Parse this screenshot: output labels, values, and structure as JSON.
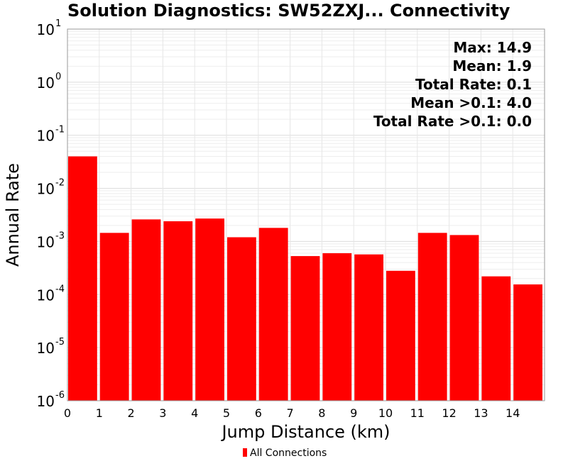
{
  "chart_data": {
    "type": "bar",
    "title": "Solution Diagnostics: SW52ZXJ... Connectivity",
    "xlabel": "Jump Distance (km)",
    "ylabel": "Annual Rate",
    "yscale": "log",
    "ylim": [
      1e-06,
      10
    ],
    "xlim": [
      0,
      15
    ],
    "x_ticks": [
      0,
      1,
      2,
      3,
      4,
      5,
      6,
      7,
      8,
      9,
      10,
      11,
      12,
      13,
      14
    ],
    "y_tick_base": "10",
    "y_tick_exponents": [
      "1",
      "0",
      "-1",
      "-2",
      "-3",
      "-4",
      "-5",
      "-6"
    ],
    "grid": true,
    "bar_color": "#ff0000",
    "bins": [
      {
        "x0": 0,
        "x1": 1,
        "value": 0.04
      },
      {
        "x0": 1,
        "x1": 2,
        "value": 0.00145
      },
      {
        "x0": 2,
        "x1": 3,
        "value": 0.0026
      },
      {
        "x0": 3,
        "x1": 4,
        "value": 0.0024
      },
      {
        "x0": 4,
        "x1": 5,
        "value": 0.0027
      },
      {
        "x0": 5,
        "x1": 6,
        "value": 0.0012
      },
      {
        "x0": 6,
        "x1": 7,
        "value": 0.0018
      },
      {
        "x0": 7,
        "x1": 8,
        "value": 0.00053
      },
      {
        "x0": 8,
        "x1": 9,
        "value": 0.0006
      },
      {
        "x0": 9,
        "x1": 10,
        "value": 0.00057
      },
      {
        "x0": 10,
        "x1": 11,
        "value": 0.00028
      },
      {
        "x0": 11,
        "x1": 12,
        "value": 0.00145
      },
      {
        "x0": 12,
        "x1": 13,
        "value": 0.00132
      },
      {
        "x0": 13,
        "x1": 14,
        "value": 0.00022
      },
      {
        "x0": 14,
        "x1": 15,
        "value": 0.000155
      }
    ],
    "annotations": [
      "Max: 14.9",
      "Mean: 1.9",
      "Total Rate: 0.1",
      "Mean >0.1: 4.0",
      "Total Rate >0.1: 0.0"
    ],
    "legend_position": "bottom-center",
    "legend": [
      {
        "name": "All Connections",
        "color": "#ff0000"
      }
    ]
  }
}
